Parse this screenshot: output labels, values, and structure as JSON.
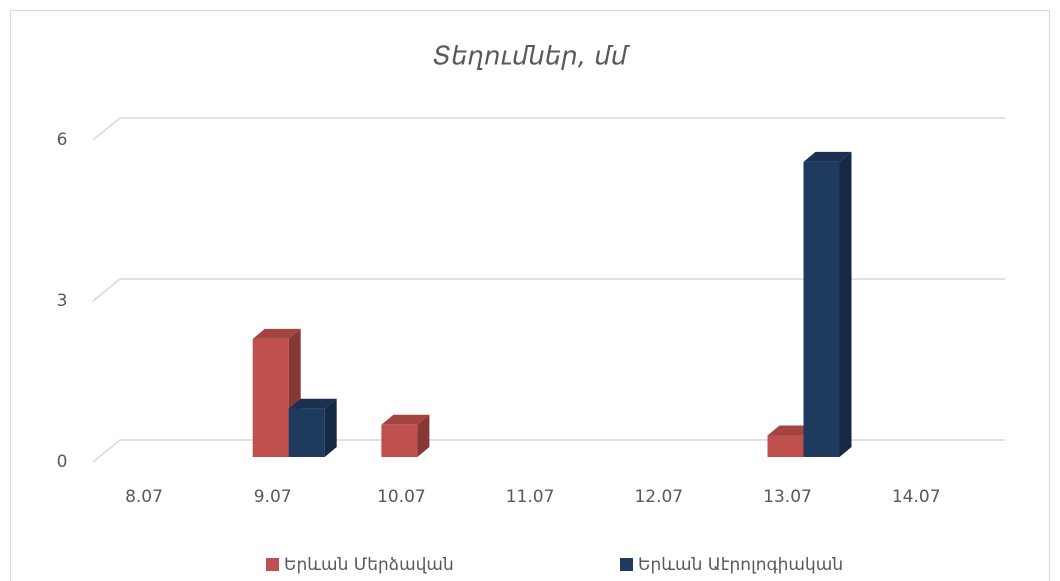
{
  "chart_data": {
    "type": "bar3d",
    "title": "Տեղումներ, մմ",
    "categories": [
      "8.07",
      "9.07",
      "10.07",
      "11.07",
      "12.07",
      "13.07",
      "14.07"
    ],
    "series": [
      {
        "name": "Երևան Մերձավան",
        "color": "#c0504d",
        "values": [
          0,
          2.2,
          0.6,
          0,
          0,
          0.4,
          0
        ]
      },
      {
        "name": "Երևան Աէրոլոգիական",
        "color": "#1f3a5f",
        "values": [
          0,
          0.9,
          0,
          0,
          0,
          5.5,
          0
        ]
      }
    ],
    "ylim": [
      0,
      6
    ],
    "yticks": [
      0,
      3,
      6
    ],
    "grid": true,
    "legend": "bottom"
  }
}
